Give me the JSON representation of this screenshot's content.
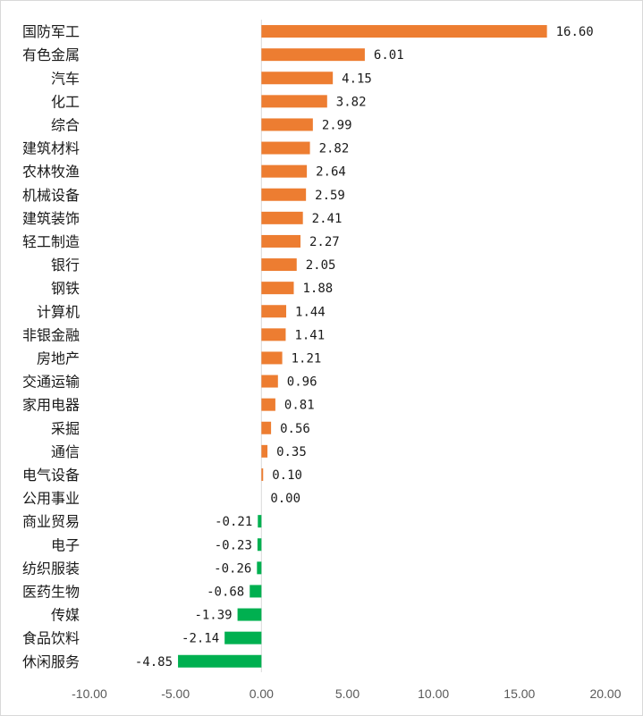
{
  "chart_data": {
    "type": "bar",
    "orientation": "horizontal",
    "categories": [
      "国防军工",
      "有色金属",
      "汽车",
      "化工",
      "综合",
      "建筑材料",
      "农林牧渔",
      "机械设备",
      "建筑装饰",
      "轻工制造",
      "银行",
      "钢铁",
      "计算机",
      "非银金融",
      "房地产",
      "交通运输",
      "家用电器",
      "采掘",
      "通信",
      "电气设备",
      "公用事业",
      "商业贸易",
      "电子",
      "纺织服装",
      "医药生物",
      "传媒",
      "食品饮料",
      "休闲服务"
    ],
    "values": [
      16.6,
      6.01,
      4.15,
      3.82,
      2.99,
      2.82,
      2.64,
      2.59,
      2.41,
      2.27,
      2.05,
      1.88,
      1.44,
      1.41,
      1.21,
      0.96,
      0.81,
      0.56,
      0.35,
      0.1,
      0.0,
      -0.21,
      -0.23,
      -0.26,
      -0.68,
      -1.39,
      -2.14,
      -4.85
    ],
    "value_labels": [
      "16.60",
      "6.01",
      "4.15",
      "3.82",
      "2.99",
      "2.82",
      "2.64",
      "2.59",
      "2.41",
      "2.27",
      "2.05",
      "1.88",
      "1.44",
      "1.41",
      "1.21",
      "0.96",
      "0.81",
      "0.56",
      "0.35",
      "0.10",
      "0.00",
      "-0.21",
      "-0.23",
      "-0.26",
      "-0.68",
      "-1.39",
      "-2.14",
      "-4.85"
    ],
    "xlim": [
      -10,
      20
    ],
    "x_ticks": [
      -10,
      -5,
      0,
      5,
      10,
      15,
      20
    ],
    "x_tick_labels": [
      "-10.00",
      "-5.00",
      "0.00",
      "5.00",
      "10.00",
      "15.00",
      "20.00"
    ],
    "grid": false,
    "legend": false,
    "colors": {
      "positive": "#ED7D31",
      "negative": "#00B050",
      "axis": "#D9D9D9"
    }
  }
}
